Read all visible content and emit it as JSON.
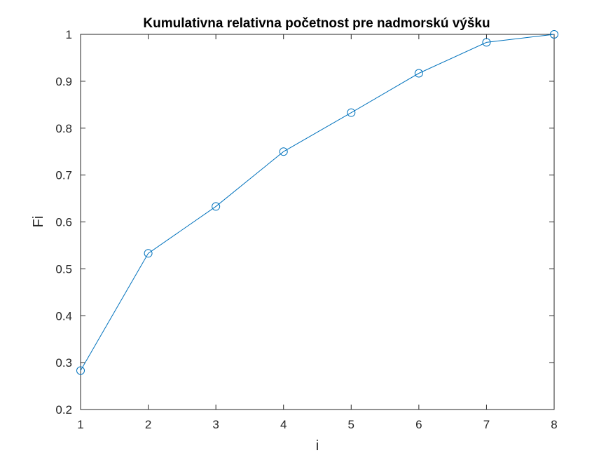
{
  "chart_data": {
    "type": "line",
    "title": "Kumulativna relativna početnost pre nadmorskú výšku",
    "xlabel": "i",
    "ylabel": "Fi",
    "xlim": [
      1,
      8
    ],
    "ylim": [
      0.2,
      1
    ],
    "xticks": [
      "1",
      "2",
      "3",
      "4",
      "5",
      "6",
      "7",
      "8"
    ],
    "yticks": [
      "0.2",
      "0.3",
      "0.4",
      "0.5",
      "0.6",
      "0.7",
      "0.8",
      "0.9",
      "1"
    ],
    "grid": false,
    "marker": "circle",
    "color": "#0072BD",
    "series": [
      {
        "x": [
          1,
          2,
          3,
          4,
          5,
          6,
          7,
          8
        ],
        "y": [
          0.283,
          0.533,
          0.633,
          0.75,
          0.833,
          0.917,
          0.983,
          1.0
        ]
      }
    ]
  }
}
